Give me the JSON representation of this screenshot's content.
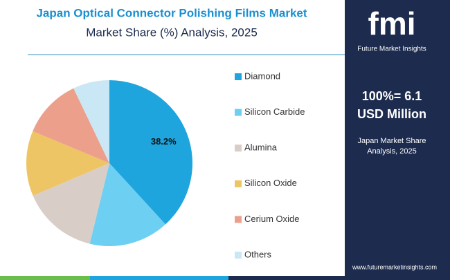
{
  "chart_data": {
    "type": "pie",
    "title": "Japan Optical Connector Polishing Films Market",
    "subtitle": "Market Share (%) Analysis, 2025",
    "categories": [
      "Diamond",
      "Silicon Carbide",
      "Alumina",
      "Silicon Oxide",
      "Cerium Oxide",
      "Others"
    ],
    "values": [
      38.2,
      15.6,
      14.8,
      12.7,
      11.6,
      7.1
    ],
    "value_labels": [
      "38.2%",
      null,
      null,
      null,
      null,
      null
    ],
    "colors": [
      "#1ea5dd",
      "#6dcff1",
      "#d9cdc8",
      "#eec565",
      "#eca08b",
      "#cae7f5"
    ],
    "legend": "right"
  },
  "sidebar": {
    "logo": "fmi",
    "logo_caption": "Future Market Insights",
    "headline": [
      "100%= 6.1",
      "USD Million"
    ],
    "caption": [
      "Japan Market Share",
      "Analysis, 2025"
    ],
    "website": "www.futuremarketinsights.com"
  }
}
